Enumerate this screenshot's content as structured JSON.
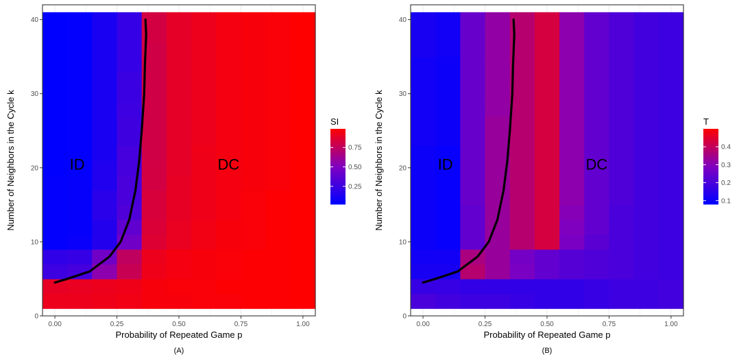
{
  "chart_data": [
    {
      "type": "heatmap",
      "panel_label": "(A)",
      "xlabel": "Probability of Repeated Game p",
      "ylabel": "Number of Neighbors in the Cycle k",
      "xlim": [
        -0.05,
        1.05
      ],
      "ylim": [
        0,
        42
      ],
      "x_ticks": [
        0.0,
        0.25,
        0.5,
        0.75,
        1.0
      ],
      "x_tick_labels": [
        "0.00",
        "0.25",
        "0.50",
        "0.75",
        "1.00"
      ],
      "y_ticks": [
        0,
        10,
        20,
        30,
        40
      ],
      "y_tick_labels": [
        "0",
        "10",
        "20",
        "30",
        "40"
      ],
      "grid": true,
      "x": [
        0.0,
        0.1,
        0.2,
        0.3,
        0.4,
        0.5,
        0.6,
        0.7,
        0.8,
        0.9,
        1.0
      ],
      "y": [
        2,
        4,
        6,
        8,
        10,
        12,
        14,
        16,
        18,
        20,
        22,
        24,
        26,
        28,
        30,
        32,
        34,
        36,
        38,
        40
      ],
      "columns": [
        {
          "x": 0.0,
          "values": [
            0.92,
            0.9,
            0.25,
            0.2,
            0.03,
            0.03,
            0.03,
            0.03,
            0.03,
            0.02,
            0.02,
            0.02,
            0.02,
            0.02,
            0.02,
            0.02,
            0.02,
            0.02,
            0.02,
            0.02
          ]
        },
        {
          "x": 0.1,
          "values": [
            0.92,
            0.91,
            0.28,
            0.22,
            0.05,
            0.04,
            0.04,
            0.04,
            0.04,
            0.03,
            0.03,
            0.03,
            0.03,
            0.03,
            0.03,
            0.03,
            0.03,
            0.03,
            0.03,
            0.03
          ]
        },
        {
          "x": 0.2,
          "values": [
            0.93,
            0.92,
            0.55,
            0.45,
            0.15,
            0.15,
            0.18,
            0.18,
            0.14,
            0.14,
            0.12,
            0.12,
            0.12,
            0.12,
            0.12,
            0.12,
            0.12,
            0.12,
            0.12,
            0.12
          ]
        },
        {
          "x": 0.3,
          "values": [
            0.94,
            0.93,
            0.78,
            0.75,
            0.45,
            0.38,
            0.32,
            0.3,
            0.3,
            0.28,
            0.28,
            0.26,
            0.26,
            0.25,
            0.24,
            0.24,
            0.22,
            0.22,
            0.22,
            0.22
          ]
        },
        {
          "x": 0.4,
          "values": [
            0.96,
            0.96,
            0.93,
            0.92,
            0.86,
            0.85,
            0.84,
            0.84,
            0.82,
            0.82,
            0.81,
            0.81,
            0.81,
            0.81,
            0.81,
            0.81,
            0.81,
            0.81,
            0.82,
            0.82
          ]
        },
        {
          "x": 0.5,
          "values": [
            0.96,
            0.97,
            0.95,
            0.95,
            0.91,
            0.91,
            0.9,
            0.9,
            0.9,
            0.89,
            0.89,
            0.89,
            0.89,
            0.89,
            0.89,
            0.89,
            0.89,
            0.89,
            0.89,
            0.89
          ]
        },
        {
          "x": 0.6,
          "values": [
            0.97,
            0.97,
            0.96,
            0.96,
            0.94,
            0.94,
            0.93,
            0.93,
            0.93,
            0.93,
            0.93,
            0.92,
            0.92,
            0.92,
            0.92,
            0.92,
            0.92,
            0.92,
            0.92,
            0.92
          ]
        },
        {
          "x": 0.7,
          "values": [
            0.97,
            0.98,
            0.97,
            0.97,
            0.96,
            0.96,
            0.95,
            0.95,
            0.95,
            0.95,
            0.95,
            0.95,
            0.95,
            0.95,
            0.95,
            0.95,
            0.95,
            0.95,
            0.95,
            0.95
          ]
        },
        {
          "x": 0.8,
          "values": [
            0.98,
            0.98,
            0.98,
            0.98,
            0.97,
            0.97,
            0.97,
            0.97,
            0.96,
            0.96,
            0.96,
            0.96,
            0.96,
            0.96,
            0.96,
            0.96,
            0.96,
            0.96,
            0.96,
            0.96
          ]
        },
        {
          "x": 0.9,
          "values": [
            0.98,
            0.98,
            0.98,
            0.98,
            0.98,
            0.98,
            0.98,
            0.98,
            0.97,
            0.97,
            0.97,
            0.97,
            0.97,
            0.97,
            0.97,
            0.97,
            0.97,
            0.97,
            0.97,
            0.97
          ]
        },
        {
          "x": 1.0,
          "values": [
            0.99,
            0.99,
            0.99,
            0.99,
            0.99,
            0.99,
            0.99,
            0.99,
            0.99,
            0.99,
            0.99,
            0.99,
            0.99,
            0.99,
            0.99,
            0.99,
            0.99,
            0.99,
            0.99,
            0.99
          ]
        }
      ],
      "boundary_line": {
        "color": "#000000",
        "x": [
          0.0,
          0.05,
          0.14,
          0.22,
          0.265,
          0.3,
          0.325,
          0.34,
          0.35,
          0.36,
          0.363,
          0.368,
          0.365
        ],
        "y": [
          4.5,
          5.0,
          6.0,
          8.0,
          10.0,
          13.0,
          17.0,
          21.0,
          25.0,
          30.0,
          34.0,
          38.0,
          40.0
        ]
      },
      "region_labels": [
        {
          "text": "ID",
          "x": 0.09,
          "y": 20.5
        },
        {
          "text": "DC",
          "x": 0.7,
          "y": 20.5
        }
      ],
      "legend": {
        "title": "SI",
        "placement": "right",
        "range": [
          0.02,
          0.99
        ],
        "ticks": [
          0.25,
          0.5,
          0.75
        ],
        "tick_labels": [
          "0.25",
          "0.50",
          "0.75"
        ],
        "low_color": "#0000ff",
        "mid_color": "#8000c0",
        "high_color": "#ff0000"
      }
    },
    {
      "type": "heatmap",
      "panel_label": "(B)",
      "xlabel": "Probability of Repeated Game p",
      "ylabel": "Number of Neighbors in the Cycle k",
      "xlim": [
        -0.05,
        1.05
      ],
      "ylim": [
        0,
        42
      ],
      "x_ticks": [
        0.0,
        0.25,
        0.5,
        0.75,
        1.0
      ],
      "x_tick_labels": [
        "0.00",
        "0.25",
        "0.50",
        "0.75",
        "1.00"
      ],
      "y_ticks": [
        0,
        10,
        20,
        30,
        40
      ],
      "y_tick_labels": [
        "0",
        "10",
        "20",
        "30",
        "40"
      ],
      "grid": true,
      "x": [
        0.0,
        0.1,
        0.2,
        0.3,
        0.4,
        0.5,
        0.6,
        0.7,
        0.8,
        0.9,
        1.0
      ],
      "y": [
        2,
        4,
        6,
        8,
        10,
        12,
        14,
        16,
        18,
        20,
        22,
        24,
        26,
        28,
        30,
        32,
        34,
        36,
        38,
        40
      ],
      "columns": [
        {
          "x": 0.0,
          "values": [
            0.2,
            0.17,
            0.12,
            0.11,
            0.1,
            0.1,
            0.1,
            0.1,
            0.1,
            0.1,
            0.1,
            0.11,
            0.11,
            0.11,
            0.11,
            0.11,
            0.11,
            0.12,
            0.12,
            0.12
          ]
        },
        {
          "x": 0.1,
          "values": [
            0.19,
            0.17,
            0.12,
            0.11,
            0.09,
            0.09,
            0.09,
            0.09,
            0.09,
            0.09,
            0.09,
            0.1,
            0.1,
            0.1,
            0.1,
            0.1,
            0.1,
            0.11,
            0.11,
            0.11
          ]
        },
        {
          "x": 0.2,
          "values": [
            0.18,
            0.16,
            0.38,
            0.36,
            0.24,
            0.24,
            0.24,
            0.25,
            0.25,
            0.25,
            0.25,
            0.25,
            0.25,
            0.25,
            0.25,
            0.25,
            0.25,
            0.25,
            0.25,
            0.25
          ]
        },
        {
          "x": 0.3,
          "values": [
            0.18,
            0.16,
            0.33,
            0.33,
            0.33,
            0.33,
            0.33,
            0.33,
            0.33,
            0.33,
            0.33,
            0.33,
            0.33,
            0.32,
            0.32,
            0.32,
            0.32,
            0.32,
            0.32,
            0.32
          ]
        },
        {
          "x": 0.4,
          "values": [
            0.17,
            0.16,
            0.28,
            0.27,
            0.38,
            0.38,
            0.38,
            0.38,
            0.38,
            0.38,
            0.38,
            0.38,
            0.38,
            0.38,
            0.38,
            0.38,
            0.38,
            0.38,
            0.38,
            0.38
          ]
        },
        {
          "x": 0.5,
          "values": [
            0.16,
            0.16,
            0.24,
            0.24,
            0.43,
            0.43,
            0.43,
            0.43,
            0.43,
            0.43,
            0.43,
            0.43,
            0.43,
            0.43,
            0.43,
            0.43,
            0.43,
            0.43,
            0.43,
            0.43
          ]
        },
        {
          "x": 0.6,
          "values": [
            0.16,
            0.16,
            0.22,
            0.22,
            0.28,
            0.29,
            0.3,
            0.31,
            0.31,
            0.31,
            0.31,
            0.31,
            0.31,
            0.31,
            0.31,
            0.31,
            0.31,
            0.31,
            0.31,
            0.31
          ]
        },
        {
          "x": 0.7,
          "values": [
            0.17,
            0.17,
            0.21,
            0.21,
            0.23,
            0.24,
            0.24,
            0.24,
            0.24,
            0.24,
            0.24,
            0.24,
            0.24,
            0.24,
            0.24,
            0.24,
            0.24,
            0.24,
            0.24,
            0.24
          ]
        },
        {
          "x": 0.8,
          "values": [
            0.18,
            0.18,
            0.2,
            0.2,
            0.2,
            0.2,
            0.2,
            0.21,
            0.21,
            0.21,
            0.21,
            0.21,
            0.21,
            0.21,
            0.21,
            0.21,
            0.21,
            0.21,
            0.21,
            0.21
          ]
        },
        {
          "x": 0.9,
          "values": [
            0.18,
            0.18,
            0.19,
            0.19,
            0.19,
            0.19,
            0.19,
            0.19,
            0.19,
            0.19,
            0.19,
            0.19,
            0.19,
            0.19,
            0.19,
            0.19,
            0.19,
            0.19,
            0.19,
            0.19
          ]
        },
        {
          "x": 1.0,
          "values": [
            0.19,
            0.19,
            0.18,
            0.18,
            0.18,
            0.18,
            0.18,
            0.18,
            0.18,
            0.18,
            0.18,
            0.18,
            0.18,
            0.18,
            0.18,
            0.18,
            0.18,
            0.18,
            0.18,
            0.18
          ]
        }
      ],
      "boundary_line": {
        "color": "#000000",
        "x": [
          0.0,
          0.05,
          0.14,
          0.22,
          0.265,
          0.3,
          0.325,
          0.34,
          0.35,
          0.36,
          0.363,
          0.368,
          0.365
        ],
        "y": [
          4.5,
          5.0,
          6.0,
          8.0,
          10.0,
          13.0,
          17.0,
          21.0,
          25.0,
          30.0,
          34.0,
          38.0,
          40.0
        ]
      },
      "region_labels": [
        {
          "text": "ID",
          "x": 0.09,
          "y": 20.5
        },
        {
          "text": "DC",
          "x": 0.7,
          "y": 20.5
        }
      ],
      "legend": {
        "title": "T",
        "placement": "right",
        "range": [
          0.08,
          0.5
        ],
        "ticks": [
          0.1,
          0.2,
          0.3,
          0.4
        ],
        "tick_labels": [
          "0.1",
          "0.2",
          "0.3",
          "0.4"
        ],
        "low_color": "#0000ff",
        "mid_color": "#8000c0",
        "high_color": "#ff0000"
      }
    }
  ]
}
